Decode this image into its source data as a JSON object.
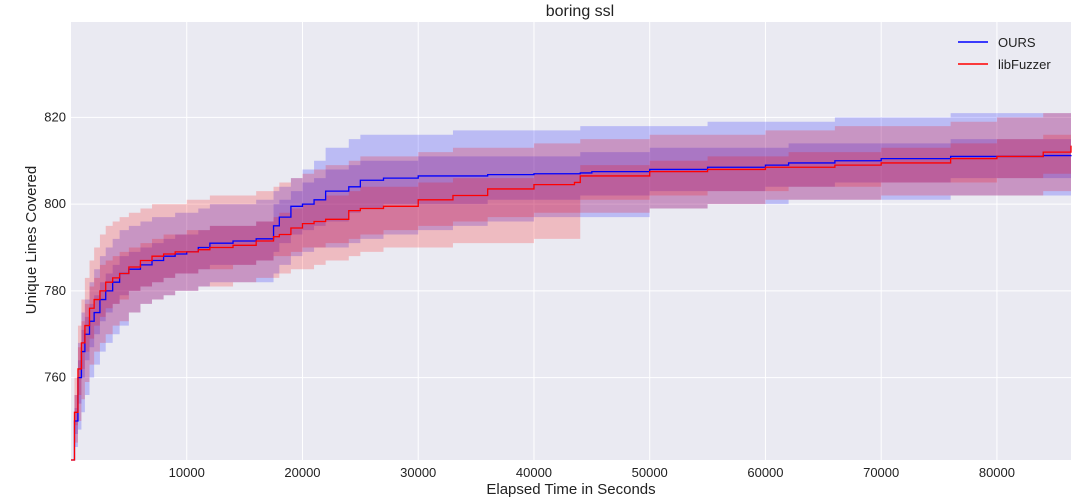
{
  "chart_data": {
    "type": "line",
    "title": "boring ssl",
    "xlabel": "Elapsed Time in Seconds",
    "ylabel": "Unique Lines Covered",
    "xlim": [
      0,
      86400
    ],
    "ylim": [
      741,
      842
    ],
    "xticks": [
      10000,
      20000,
      30000,
      40000,
      50000,
      60000,
      70000,
      80000
    ],
    "yticks": [
      760,
      780,
      800,
      820
    ],
    "grid": true,
    "legend_position": "top-right",
    "colors": {
      "plot_bg": "#eaeaf2",
      "grid": "#ffffff",
      "OURS": "#0000ff",
      "libFuzzer": "#ff0000"
    },
    "series": [
      {
        "name": "OURS",
        "color": "#0000ff",
        "x": [
          0,
          300,
          600,
          900,
          1200,
          1600,
          2000,
          2500,
          3000,
          3600,
          4200,
          5000,
          6000,
          7000,
          8000,
          9000,
          10000,
          11000,
          12000,
          14000,
          16000,
          17500,
          18000,
          19000,
          20000,
          21000,
          22000,
          24000,
          25000,
          27000,
          30000,
          33000,
          36000,
          40000,
          44000,
          45000,
          50000,
          55000,
          60000,
          62000,
          66000,
          70000,
          76000,
          80000,
          84000,
          86400
        ],
        "y": [
          741,
          750,
          760,
          766,
          770,
          773,
          775,
          778,
          780,
          782,
          784,
          785,
          786,
          787,
          788,
          788.5,
          789,
          790,
          791,
          791.5,
          792,
          795,
          797,
          799.5,
          800,
          801,
          803,
          804,
          805.5,
          806,
          806.5,
          806.5,
          806.8,
          807,
          807.2,
          807.5,
          808,
          808.5,
          809,
          809.5,
          810,
          810.5,
          811,
          811,
          811.2,
          811.3
        ],
        "band_outer_lo": [
          741,
          744,
          748,
          752,
          756,
          760,
          763,
          766,
          768,
          770,
          772,
          775,
          777,
          778,
          779,
          780,
          780,
          781,
          782,
          782,
          782,
          784,
          786,
          788,
          789,
          790,
          790,
          791,
          792,
          793,
          794,
          795,
          796,
          797,
          797,
          797,
          799,
          800,
          800,
          801,
          801,
          801,
          802,
          802,
          802,
          803
        ],
        "band_outer_hi": [
          741,
          756,
          768,
          775,
          778,
          782,
          785,
          788,
          790,
          792,
          794,
          795,
          796,
          797,
          797,
          798,
          798,
          799,
          800,
          800,
          801,
          803,
          804,
          806,
          808,
          810,
          813,
          815,
          816,
          816,
          816,
          817,
          817,
          817,
          818,
          818,
          818,
          819,
          819,
          819,
          820,
          820,
          821,
          821,
          821,
          821
        ],
        "band_inner_lo": [
          741,
          747,
          754,
          760,
          764,
          767,
          770,
          773,
          775,
          777,
          779,
          780,
          781,
          782,
          783,
          784,
          784,
          785,
          786,
          786,
          787,
          789,
          791,
          793,
          794,
          795,
          796,
          798,
          799,
          800,
          800,
          800,
          801,
          801,
          802,
          802,
          803,
          803,
          804,
          804,
          805,
          805,
          806,
          806,
          806,
          807
        ],
        "band_inner_hi": [
          741,
          753,
          764,
          771,
          774,
          777,
          779,
          782,
          784,
          786,
          788,
          789,
          790,
          791,
          792,
          793,
          793,
          794,
          795,
          795,
          796,
          800,
          801,
          803,
          805,
          806,
          808,
          809,
          810,
          810,
          811,
          811,
          811,
          811,
          812,
          812,
          813,
          813,
          813,
          814,
          814,
          814,
          815,
          815,
          815,
          815
        ]
      },
      {
        "name": "libFuzzer",
        "color": "#ff0000",
        "x": [
          0,
          300,
          600,
          900,
          1200,
          1600,
          2000,
          2500,
          3000,
          3600,
          4200,
          5000,
          6000,
          7000,
          8000,
          9000,
          10000,
          11000,
          12000,
          14000,
          16000,
          17500,
          18000,
          19000,
          20000,
          21000,
          22000,
          24000,
          25000,
          27000,
          30000,
          33000,
          36000,
          40000,
          43500,
          44000,
          50000,
          55000,
          60000,
          62000,
          66000,
          70000,
          76000,
          80000,
          84000,
          86400
        ],
        "y": [
          741,
          752,
          762,
          768,
          772,
          776,
          778,
          780,
          782,
          783,
          784,
          785.5,
          787,
          788,
          788.5,
          789,
          789,
          789.5,
          790,
          790.5,
          791.5,
          792.5,
          793,
          794.5,
          795.5,
          796,
          796.5,
          798.5,
          799,
          799.5,
          801,
          802,
          803.5,
          804.5,
          805,
          806.5,
          807.5,
          808,
          808.5,
          808.5,
          809,
          809.5,
          810.5,
          811,
          812,
          813.5
        ],
        "band_outer_lo": [
          741,
          745,
          750,
          755,
          759,
          763,
          766,
          768,
          770,
          772,
          773,
          775,
          777,
          778,
          779,
          780,
          780,
          781,
          781,
          782,
          783,
          783,
          784,
          785,
          785,
          786,
          787,
          788,
          789,
          790,
          790,
          791,
          791,
          792,
          792,
          798,
          799,
          800,
          801,
          801,
          801,
          802,
          802,
          802,
          803,
          804
        ],
        "band_outer_hi": [
          741,
          760,
          772,
          778,
          783,
          787,
          790,
          793,
          795,
          796,
          797,
          798,
          799,
          800,
          800,
          800,
          801,
          801,
          802,
          802,
          803,
          804,
          805,
          806,
          807,
          808,
          809,
          810,
          811,
          811,
          812,
          813,
          813,
          814,
          814,
          815,
          816,
          816,
          817,
          817,
          818,
          818,
          819,
          820,
          821,
          822
        ],
        "band_inner_lo": [
          741,
          749,
          756,
          762,
          766,
          769,
          772,
          774,
          776,
          777,
          778,
          780,
          781,
          782,
          783,
          784,
          784,
          785,
          785,
          786,
          787,
          788,
          788,
          789,
          790,
          790,
          791,
          792,
          793,
          794,
          795,
          796,
          797,
          798,
          798,
          801,
          802,
          803,
          803,
          804,
          804,
          805,
          805,
          806,
          807,
          808
        ],
        "band_inner_hi": [
          741,
          756,
          767,
          773,
          777,
          781,
          783,
          786,
          787,
          788,
          789,
          790,
          791,
          792,
          793,
          793,
          794,
          794,
          795,
          795,
          796,
          797,
          798,
          799,
          800,
          801,
          802,
          803,
          804,
          804,
          805,
          806,
          806,
          807,
          807,
          809,
          810,
          811,
          811,
          812,
          812,
          813,
          814,
          815,
          816,
          817
        ]
      }
    ]
  }
}
